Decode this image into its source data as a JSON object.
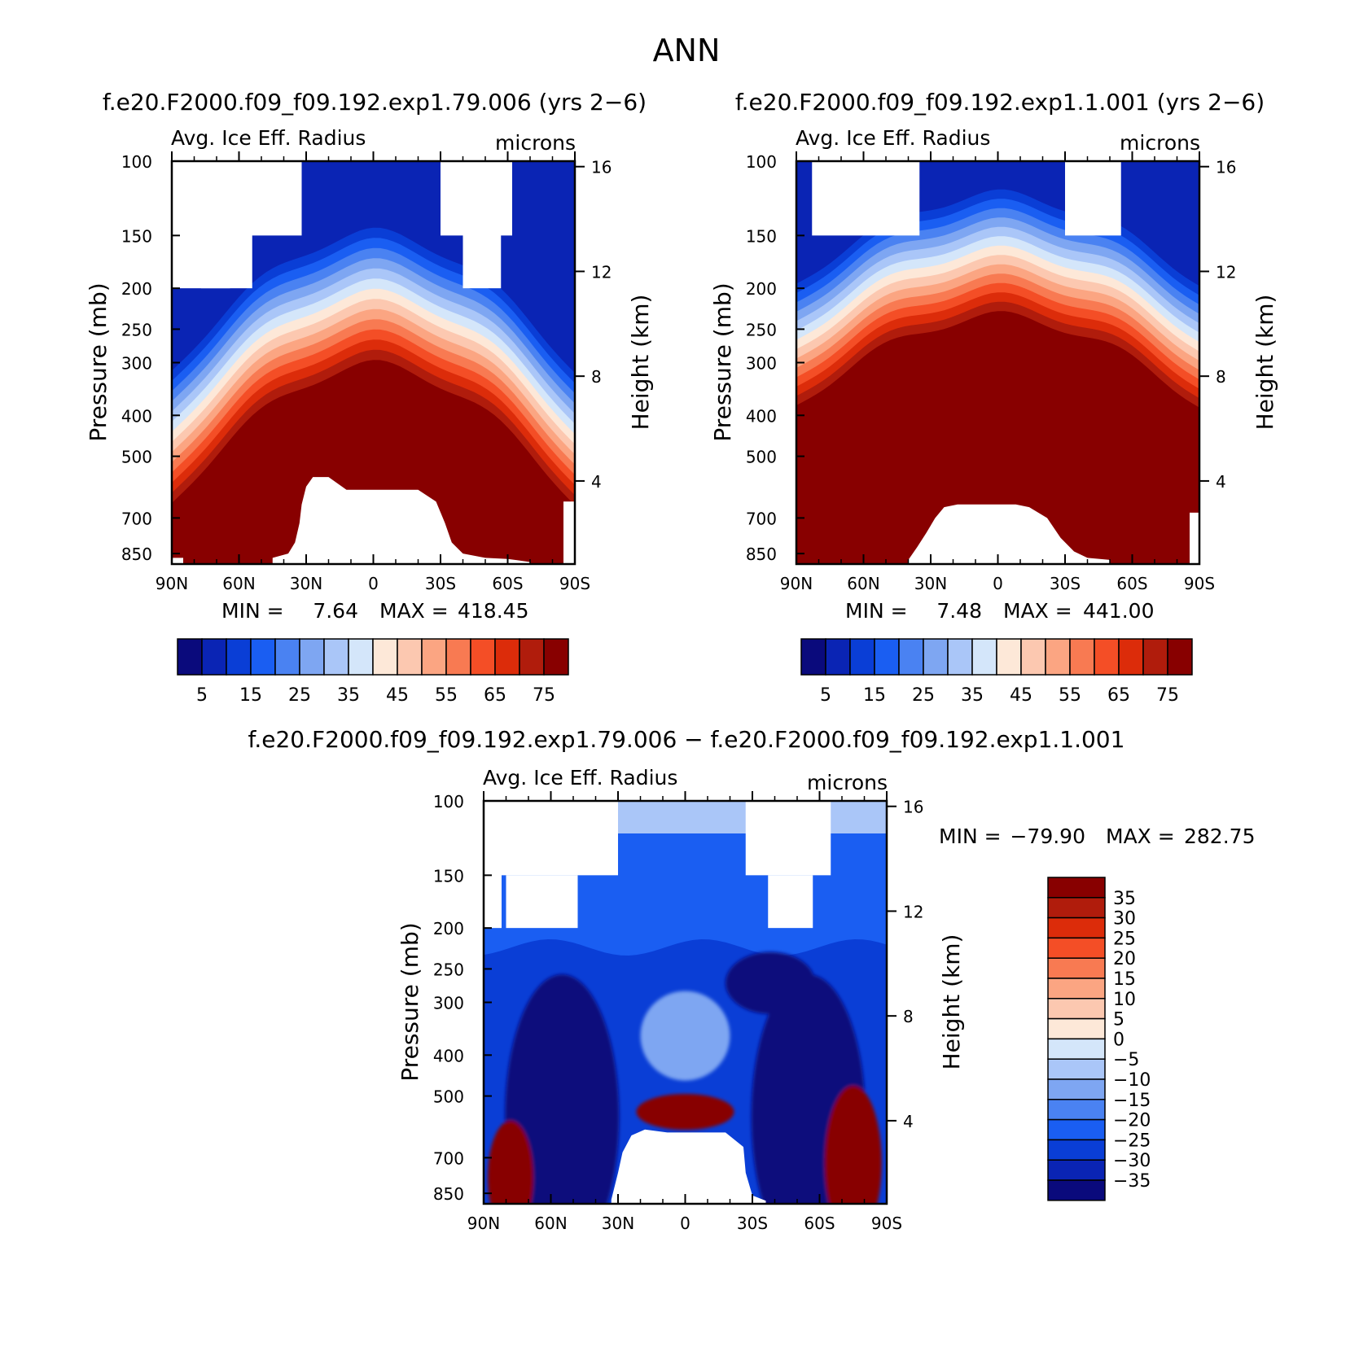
{
  "figure": {
    "title": "ANN"
  },
  "panels": [
    {
      "id": "top-left",
      "case_title": "f.e20.F2000.f09_f09.192.exp1.79.006 (yrs 2−6)",
      "variable": "Avg. Ice Eff. Radius",
      "units": "microns",
      "ylabel_left": "Pressure (mb)",
      "ylabel_right": "Height (km)",
      "pressure_ticks": [
        "100",
        "150",
        "200",
        "250",
        "300",
        "400",
        "500",
        "700",
        "850"
      ],
      "height_ticks": [
        "16",
        "12",
        "8",
        "4"
      ],
      "lat_ticks": [
        "90N",
        "60N",
        "30N",
        "0",
        "30S",
        "60S",
        "90S"
      ],
      "min_label": "MIN =",
      "min_value": "7.64",
      "max_label": "MAX =",
      "max_value": "418.45"
    },
    {
      "id": "top-right",
      "case_title": "f.e20.F2000.f09_f09.192.exp1.1.001 (yrs 2−6)",
      "variable": "Avg. Ice Eff. Radius",
      "units": "microns",
      "ylabel_left": "Pressure (mb)",
      "ylabel_right": "Height (km)",
      "pressure_ticks": [
        "100",
        "150",
        "200",
        "250",
        "300",
        "400",
        "500",
        "700",
        "850"
      ],
      "height_ticks": [
        "16",
        "12",
        "8",
        "4"
      ],
      "lat_ticks": [
        "90N",
        "60N",
        "30N",
        "0",
        "30S",
        "60S",
        "90S"
      ],
      "min_label": "MIN =",
      "min_value": "7.48",
      "max_label": "MAX =",
      "max_value": "441.00"
    },
    {
      "id": "bottom",
      "case_title": "f.e20.F2000.f09_f09.192.exp1.79.006 − f.e20.F2000.f09_f09.192.exp1.1.001",
      "variable": "Avg. Ice Eff. Radius",
      "units": "microns",
      "ylabel_left": "Pressure (mb)",
      "ylabel_right": "Height (km)",
      "pressure_ticks": [
        "100",
        "150",
        "200",
        "250",
        "300",
        "400",
        "500",
        "700",
        "850"
      ],
      "height_ticks": [
        "16",
        "12",
        "8",
        "4"
      ],
      "lat_ticks": [
        "90N",
        "60N",
        "30N",
        "0",
        "30S",
        "60S",
        "90S"
      ],
      "min_label": "MIN =",
      "min_value": "−79.90",
      "max_label": "MAX =",
      "max_value": "282.75"
    }
  ],
  "colorbars": {
    "absolute": {
      "labels": [
        "5",
        "15",
        "25",
        "35",
        "45",
        "55",
        "65",
        "75"
      ],
      "colors": [
        "#0a0a7c",
        "#0a24b4",
        "#0a3ed6",
        "#1a5ef2",
        "#4a82f2",
        "#7ea6f2",
        "#aac6f8",
        "#d4e6fa",
        "#fde8d8",
        "#fcc8b0",
        "#fba582",
        "#f87a52",
        "#f44e26",
        "#dc2c0a",
        "#b01c0c",
        "#880000"
      ]
    },
    "difference": {
      "labels": [
        "35",
        "30",
        "25",
        "20",
        "15",
        "10",
        "5",
        "0",
        "−5",
        "−10",
        "−15",
        "−20",
        "−25",
        "−30",
        "−35"
      ],
      "colors": [
        "#880000",
        "#b01c0c",
        "#dc2c0a",
        "#f44e26",
        "#f87a52",
        "#fba582",
        "#fcc8b0",
        "#fde8d8",
        "#d4e6fa",
        "#aac6f8",
        "#7ea6f2",
        "#4a82f2",
        "#1a5ef2",
        "#0a3ed6",
        "#0a24b4",
        "#0a0a7c"
      ]
    }
  },
  "chart_data": [
    {
      "type": "heatmap",
      "title": "f.e20.F2000.f09_f09.192.exp1.79.006 (yrs 2−6)",
      "subtitle": "Avg. Ice Eff. Radius (microns)",
      "xlabel": "",
      "ylabel": "Pressure (mb)",
      "ylabel_right": "Height (km)",
      "x_range": [
        "90N",
        "90S"
      ],
      "y_range_mb": [
        100,
        900
      ],
      "contour_levels": [
        5,
        10,
        15,
        20,
        25,
        30,
        35,
        40,
        45,
        50,
        55,
        60,
        65,
        70,
        75
      ],
      "min": 7.64,
      "max": 418.45
    },
    {
      "type": "heatmap",
      "title": "f.e20.F2000.f09_f09.192.exp1.1.001 (yrs 2−6)",
      "subtitle": "Avg. Ice Eff. Radius (microns)",
      "xlabel": "",
      "ylabel": "Pressure (mb)",
      "ylabel_right": "Height (km)",
      "x_range": [
        "90N",
        "90S"
      ],
      "y_range_mb": [
        100,
        900
      ],
      "contour_levels": [
        5,
        10,
        15,
        20,
        25,
        30,
        35,
        40,
        45,
        50,
        55,
        60,
        65,
        70,
        75
      ],
      "min": 7.48,
      "max": 441.0
    },
    {
      "type": "heatmap",
      "title": "f.e20.F2000.f09_f09.192.exp1.79.006 − f.e20.F2000.f09_f09.192.exp1.1.001",
      "subtitle": "Avg. Ice Eff. Radius (microns)",
      "xlabel": "",
      "ylabel": "Pressure (mb)",
      "ylabel_right": "Height (km)",
      "x_range": [
        "90N",
        "90S"
      ],
      "y_range_mb": [
        100,
        900
      ],
      "contour_levels": [
        -35,
        -30,
        -25,
        -20,
        -15,
        -10,
        -5,
        0,
        5,
        10,
        15,
        20,
        25,
        30,
        35
      ],
      "min": -79.9,
      "max": 282.75
    }
  ]
}
